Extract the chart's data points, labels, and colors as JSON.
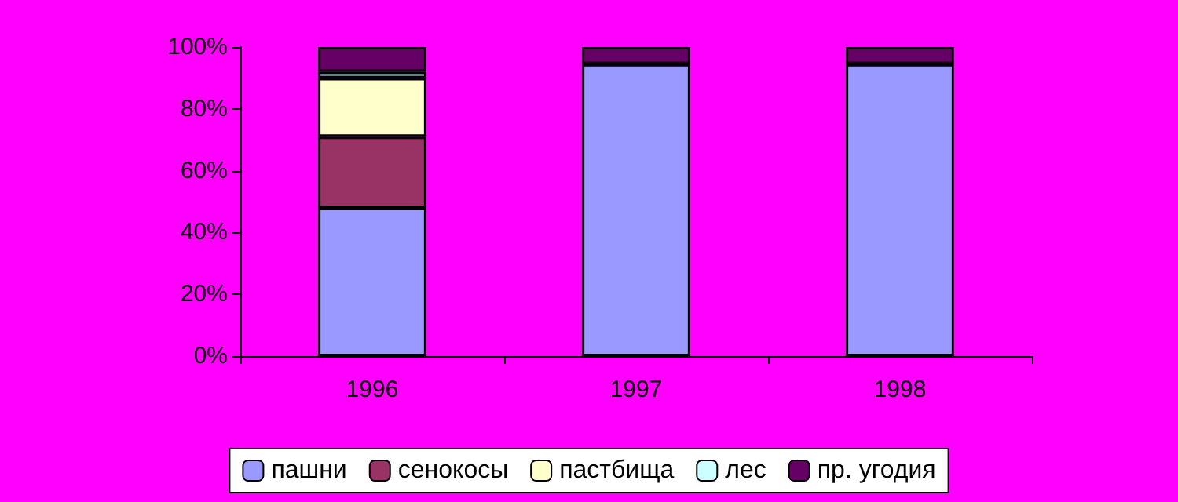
{
  "chart_data": {
    "type": "bar",
    "stacked": true,
    "categories": [
      "1996",
      "1997",
      "1998"
    ],
    "series": [
      {
        "name": "пашни",
        "color": "#9999ff",
        "values": [
          48,
          94.5,
          94.5
        ]
      },
      {
        "name": "сенокосы",
        "color": "#993366",
        "values": [
          23,
          0,
          0
        ]
      },
      {
        "name": "пастбища",
        "color": "#ffffcc",
        "values": [
          19,
          0,
          0
        ]
      },
      {
        "name": "лес",
        "color": "#ccffff",
        "values": [
          2,
          0,
          0
        ]
      },
      {
        "name": "пр. угодия",
        "color": "#660066",
        "values": [
          8,
          5.5,
          5.5
        ]
      }
    ],
    "ylim": [
      0,
      100
    ],
    "yticks": [
      {
        "value": 0,
        "label": "0%"
      },
      {
        "value": 20,
        "label": "20%"
      },
      {
        "value": 40,
        "label": "40%"
      },
      {
        "value": 60,
        "label": "60%"
      },
      {
        "value": 80,
        "label": "80%"
      },
      {
        "value": 100,
        "label": "100%"
      }
    ],
    "grid": false,
    "legend": "bottom"
  }
}
